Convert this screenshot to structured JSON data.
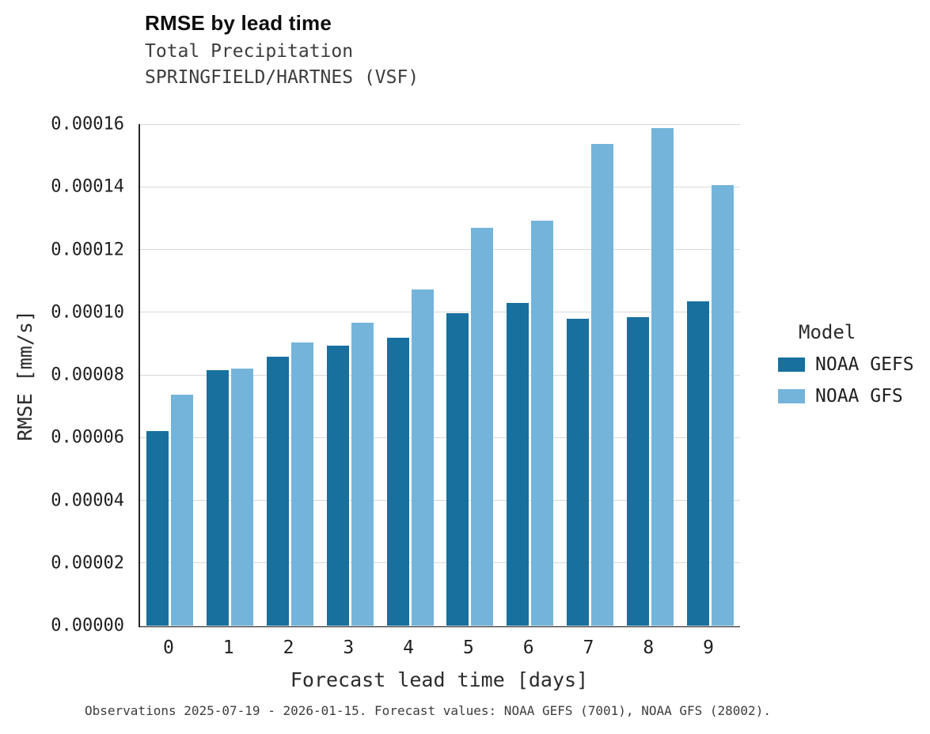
{
  "chart_data": {
    "type": "bar",
    "title": "RMSE by lead time",
    "subtitle": [
      "Total Precipitation",
      "SPRINGFIELD/HARTNES (VSF)"
    ],
    "xlabel": "Forecast lead time [days]",
    "ylabel": "RMSE [mm/s]",
    "categories": [
      "0",
      "1",
      "2",
      "3",
      "4",
      "5",
      "6",
      "7",
      "8",
      "9"
    ],
    "series": [
      {
        "name": "NOAA GEFS",
        "color": "#17709e",
        "values": [
          6.2e-05,
          8.15e-05,
          8.58e-05,
          8.93e-05,
          9.18e-05,
          9.96e-05,
          0.0001029,
          9.79e-05,
          9.84e-05,
          0.0001036
        ]
      },
      {
        "name": "NOAA GFS",
        "color": "#74b4da",
        "values": [
          7.37e-05,
          8.2e-05,
          9.03e-05,
          9.66e-05,
          0.0001072,
          0.000127,
          0.0001293,
          0.0001537,
          0.0001587,
          0.0001406
        ]
      }
    ],
    "ylim": [
      0,
      0.00016
    ],
    "ytick_step": 2e-05,
    "ytick_decimals": 5,
    "grid": "horizontal",
    "legend_title": "Model",
    "legend_position": "right",
    "caption": "Observations 2025-07-19 - 2026-01-15. Forecast values: NOAA GEFS (7001), NOAA GFS (28002)."
  }
}
